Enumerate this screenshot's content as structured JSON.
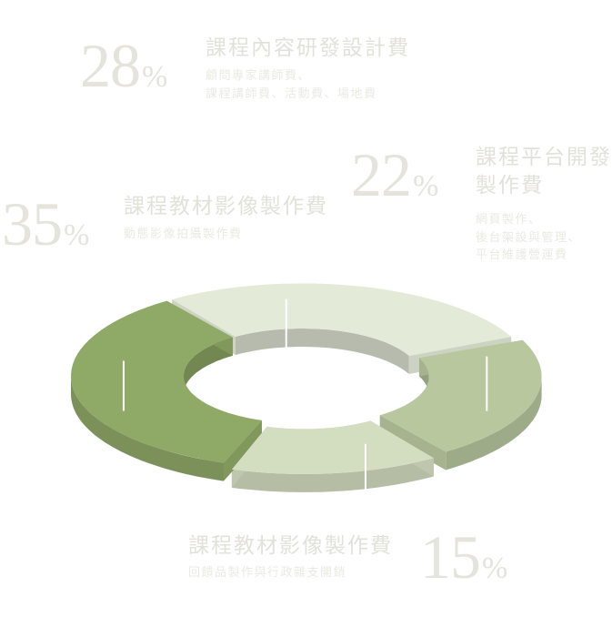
{
  "chart_data": {
    "type": "pie",
    "style": "3d-donut",
    "slices": [
      {
        "id": "s28",
        "percent": 28,
        "title": "課程內容研發設計費",
        "desc": [
          "顧問專家講師費、",
          "課程講師費、活動費、場地費"
        ],
        "color": "#e4ead8"
      },
      {
        "id": "s22",
        "percent": 22,
        "title": "課程平台開發製作費",
        "title_lines": [
          "課程平台開發",
          "製作費"
        ],
        "desc": [
          "網頁製作、",
          "後台架設與管理、",
          "平台維護營運費"
        ],
        "color": "#b8c79e"
      },
      {
        "id": "s15",
        "percent": 15,
        "title": "課程教材影像製作費",
        "desc": [
          "回饋品製作與行政雜支開銷"
        ],
        "color": "#d3ddc0"
      },
      {
        "id": "s35",
        "percent": 35,
        "title": "課程教材影像製作費",
        "desc": [
          "動態影像拍攝製作費"
        ],
        "color": "#8fa967"
      }
    ],
    "percent_symbol": "%"
  }
}
